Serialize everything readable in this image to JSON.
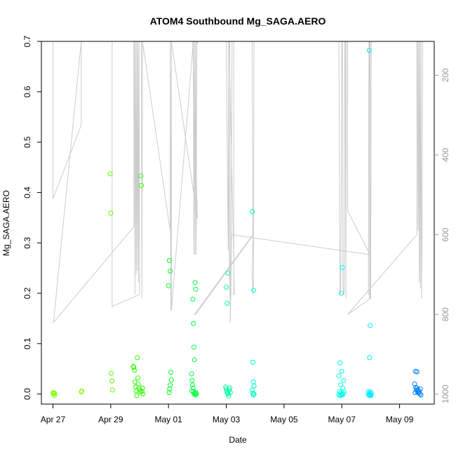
{
  "chart_data": {
    "type": "scatter",
    "title": "ATOM4 Southbound Mg_SAGA.AERO",
    "xlabel": "Date",
    "ylabel": "Mg_SAGA.AERO",
    "x_tick_labels": [
      "Apr 27",
      "Apr 29",
      "May 01",
      "May 03",
      "May 05",
      "May 07",
      "May 09"
    ],
    "x_tick_days": [
      0,
      2,
      4,
      6,
      8,
      10,
      12
    ],
    "xlim_days": [
      -0.4,
      13.2
    ],
    "ylim": [
      -0.02,
      0.7
    ],
    "y_ticks": [
      0.0,
      0.1,
      0.2,
      0.3,
      0.4,
      0.5,
      0.6,
      0.7
    ],
    "y_tick_labels": [
      "0.0",
      "0.1",
      "0.2",
      "0.3",
      "0.4",
      "0.5",
      "0.6",
      "0.7"
    ],
    "right_axis": {
      "ticks": [
        200,
        400,
        600,
        800,
        1000
      ],
      "tick_labels": [
        "200",
        "400",
        "600",
        "800",
        "1000"
      ],
      "reversed": true,
      "ylim": [
        115,
        1025
      ],
      "color": "#999999"
    },
    "point_style": "open-circle",
    "series": [
      {
        "color": "#7fff00",
        "points": [
          [
            0.0,
            0.003
          ],
          [
            0.02,
            0.0
          ],
          [
            0.04,
            0.002
          ],
          [
            0.05,
            -0.003
          ],
          [
            0.06,
            0.001
          ],
          [
            0.98,
            0.004
          ],
          [
            1.0,
            0.006
          ]
        ]
      },
      {
        "color": "#5aff00",
        "points": [
          [
            1.98,
            0.437
          ],
          [
            2.0,
            0.359
          ],
          [
            2.02,
            0.041
          ],
          [
            2.04,
            0.026
          ],
          [
            2.06,
            0.008
          ]
        ]
      },
      {
        "color": "#2dff00",
        "points": [
          [
            2.78,
            0.055
          ],
          [
            2.8,
            0.053
          ],
          [
            2.82,
            0.047
          ],
          [
            2.84,
            0.024
          ],
          [
            2.86,
            0.014
          ],
          [
            2.88,
            0.006
          ],
          [
            2.9,
            -0.003
          ],
          [
            2.92,
            0.072
          ],
          [
            2.94,
            0.032
          ],
          [
            2.96,
            0.02
          ],
          [
            2.98,
            0.012
          ],
          [
            3.0,
            0.008
          ],
          [
            3.02,
            0.004
          ],
          [
            3.04,
            0.433
          ],
          [
            3.06,
            0.414
          ],
          [
            3.08,
            0.005
          ],
          [
            3.1,
            0.012
          ],
          [
            3.12,
            0.0
          ]
        ]
      },
      {
        "color": "#00ff20",
        "points": [
          [
            4.0,
            0.215
          ],
          [
            4.03,
            0.265
          ],
          [
            4.06,
            0.244
          ],
          [
            4.08,
            0.043
          ],
          [
            4.1,
            0.028
          ],
          [
            4.06,
            0.018
          ],
          [
            4.04,
            0.01
          ],
          [
            4.02,
            0.003
          ]
        ]
      },
      {
        "color": "#00ff40",
        "points": [
          [
            4.8,
            0.04
          ],
          [
            4.82,
            0.027
          ],
          [
            4.84,
            0.188
          ],
          [
            4.86,
            0.14
          ],
          [
            4.88,
            0.093
          ],
          [
            4.9,
            0.068
          ],
          [
            4.92,
            0.221
          ],
          [
            4.94,
            0.208
          ],
          [
            4.85,
            0.012
          ],
          [
            4.87,
            0.005
          ],
          [
            4.89,
            0.0
          ],
          [
            4.91,
            0.002
          ],
          [
            4.93,
            -0.002
          ],
          [
            4.95,
            0.003
          ],
          [
            4.97,
            0.0
          ],
          [
            4.83,
            0.018
          ],
          [
            4.81,
            0.006
          ]
        ]
      },
      {
        "color": "#00ff9f",
        "points": [
          [
            6.0,
            0.212
          ],
          [
            6.03,
            0.18
          ],
          [
            6.06,
            0.24
          ],
          [
            5.98,
            0.014
          ],
          [
            6.0,
            0.01
          ],
          [
            6.02,
            0.005
          ],
          [
            6.04,
            0.002
          ],
          [
            6.06,
            0.0
          ],
          [
            6.08,
            -0.004
          ],
          [
            6.1,
            0.008
          ],
          [
            6.12,
            0.012
          ],
          [
            6.14,
            0.003
          ]
        ]
      },
      {
        "color": "#00ffbf",
        "points": [
          [
            6.9,
            0.362
          ],
          [
            6.95,
            0.206
          ],
          [
            6.92,
            0.063
          ],
          [
            6.94,
            0.024
          ],
          [
            6.96,
            0.016
          ],
          [
            6.9,
            0.008
          ],
          [
            6.92,
            0.002
          ],
          [
            6.96,
            0.0
          ],
          [
            6.94,
            -0.002
          ]
        ]
      },
      {
        "color": "#00ffef",
        "points": [
          [
            9.9,
            0.036
          ],
          [
            9.94,
            0.062
          ],
          [
            9.98,
            0.2
          ],
          [
            10.0,
            0.045
          ],
          [
            10.02,
            0.251
          ],
          [
            10.06,
            0.027
          ],
          [
            9.96,
            0.018
          ],
          [
            10.04,
            0.012
          ],
          [
            9.92,
            0.005
          ],
          [
            9.96,
            0.002
          ],
          [
            10.0,
            0.0
          ],
          [
            10.04,
            0.001
          ],
          [
            10.08,
            0.004
          ],
          [
            9.94,
            -0.003
          ],
          [
            9.98,
            -0.002
          ],
          [
            10.02,
            -0.002
          ],
          [
            9.9,
            -0.002
          ]
        ]
      },
      {
        "color": "#00efff",
        "points": [
          [
            10.95,
            0.682
          ],
          [
            10.98,
            0.136
          ],
          [
            10.96,
            0.072
          ],
          [
            10.92,
            0.005
          ],
          [
            10.94,
            0.002
          ],
          [
            10.97,
            0.0
          ],
          [
            11.0,
            0.004
          ],
          [
            11.02,
            0.001
          ],
          [
            10.95,
            -0.003
          ],
          [
            10.99,
            -0.002
          ],
          [
            11.01,
            -0.003
          ],
          [
            10.93,
            -0.002
          ]
        ]
      },
      {
        "color": "#0080ff",
        "points": [
          [
            12.55,
            0.045
          ],
          [
            12.6,
            0.044
          ],
          [
            12.52,
            0.02
          ],
          [
            12.56,
            0.013
          ],
          [
            12.6,
            0.012
          ],
          [
            12.64,
            0.008
          ],
          [
            12.58,
            0.008
          ],
          [
            12.62,
            0.004
          ],
          [
            12.66,
            0.002
          ],
          [
            12.7,
            0.0
          ],
          [
            12.74,
            -0.002
          ],
          [
            12.54,
            0.003
          ],
          [
            12.68,
            0.005
          ],
          [
            12.72,
            0.01
          ]
        ]
      }
    ],
    "track": {
      "color": "#cccccc",
      "points": [
        [
          0.0,
          115
        ],
        [
          0.0,
          510
        ],
        [
          0.98,
          325
        ],
        [
          0.98,
          115
        ],
        [
          0.98,
          115
        ],
        [
          0.02,
          820
        ],
        [
          2.8,
          580
        ],
        [
          2.8,
          115
        ],
        [
          2.82,
          115
        ],
        [
          2.84,
          750
        ],
        [
          2.86,
          115
        ],
        [
          2.88,
          700
        ],
        [
          2.9,
          115
        ],
        [
          2.92,
          690
        ],
        [
          2.94,
          115
        ],
        [
          2.96,
          720
        ],
        [
          2.98,
          115
        ],
        [
          3.0,
          750
        ],
        [
          3.0,
          750
        ],
        [
          2.05,
          780
        ],
        [
          2.05,
          115
        ],
        [
          2.03,
          115
        ],
        [
          3.06,
          115
        ],
        [
          3.08,
          760
        ],
        [
          3.1,
          115
        ],
        [
          3.1,
          115
        ],
        [
          4.06,
          590
        ],
        [
          4.06,
          115
        ],
        [
          4.06,
          115
        ],
        [
          4.08,
          790
        ],
        [
          4.1,
          115
        ],
        [
          4.1,
          115
        ],
        [
          5.0,
          560
        ],
        [
          4.84,
          115
        ],
        [
          4.86,
          115
        ],
        [
          4.88,
          650
        ],
        [
          4.9,
          115
        ],
        [
          4.92,
          650
        ],
        [
          4.94,
          115
        ],
        [
          4.96,
          650
        ],
        [
          4.98,
          115
        ],
        [
          5.0,
          120
        ],
        [
          5.02,
          115
        ],
        [
          5.02,
          115
        ],
        [
          4.86,
          115
        ],
        [
          4.1,
          790
        ],
        [
          4.1,
          115
        ],
        [
          6.0,
          115
        ],
        [
          6.0,
          110
        ],
        [
          6.05,
          520
        ],
        [
          6.05,
          520
        ],
        [
          6.07,
          640
        ],
        [
          6.08,
          115
        ],
        [
          6.1,
          600
        ],
        [
          6.12,
          740
        ],
        [
          6.14,
          770
        ],
        [
          6.16,
          760
        ],
        [
          6.18,
          430
        ],
        [
          6.2,
          115
        ],
        [
          6.22,
          115
        ],
        [
          6.26,
          115
        ],
        [
          6.26,
          115
        ],
        [
          6.26,
          750
        ],
        [
          6.28,
          750
        ],
        [
          6.28,
          750
        ],
        [
          6.1,
          115
        ],
        [
          6.12,
          115
        ],
        [
          6.14,
          820
        ],
        [
          6.16,
          730
        ],
        [
          6.18,
          600
        ],
        [
          6.18,
          600
        ],
        [
          10.98,
          650
        ],
        [
          10.98,
          115
        ],
        [
          6.9,
          115
        ],
        [
          6.92,
          600
        ],
        [
          6.92,
          600
        ],
        [
          4.9,
          800
        ],
        [
          4.94,
          800
        ],
        [
          6.94,
          600
        ],
        [
          6.92,
          620
        ],
        [
          6.9,
          700
        ],
        [
          6.92,
          750
        ],
        [
          6.94,
          720
        ],
        [
          6.96,
          115
        ],
        [
          6.96,
          115
        ],
        [
          9.9,
          115
        ],
        [
          9.9,
          110
        ],
        [
          9.92,
          470
        ],
        [
          9.94,
          750
        ],
        [
          9.96,
          740
        ],
        [
          9.98,
          520
        ],
        [
          10.0,
          115
        ],
        [
          10.02,
          115
        ],
        [
          10.04,
          730
        ],
        [
          10.06,
          740
        ],
        [
          10.08,
          750
        ],
        [
          10.1,
          115
        ],
        [
          10.12,
          115
        ],
        [
          10.14,
          760
        ],
        [
          10.16,
          115
        ],
        [
          10.18,
          115
        ],
        [
          10.2,
          115
        ],
        [
          10.2,
          540
        ],
        [
          10.98,
          650
        ],
        [
          10.98,
          750
        ],
        [
          10.92,
          750
        ],
        [
          10.94,
          115
        ],
        [
          10.96,
          115
        ],
        [
          10.96,
          760
        ],
        [
          10.98,
          760
        ],
        [
          11.0,
          740
        ],
        [
          11.02,
          115
        ],
        [
          11.02,
          115
        ],
        [
          11.0,
          760
        ],
        [
          11.0,
          760
        ],
        [
          10.2,
          800
        ],
        [
          10.2,
          800
        ],
        [
          12.6,
          600
        ],
        [
          12.6,
          115
        ],
        [
          12.62,
          115
        ],
        [
          12.64,
          590
        ],
        [
          12.66,
          115
        ],
        [
          12.68,
          720
        ],
        [
          12.7,
          115
        ],
        [
          12.72,
          735
        ],
        [
          12.74,
          115
        ],
        [
          12.76,
          760
        ],
        [
          12.78,
          600
        ],
        [
          12.8,
          115
        ]
      ]
    }
  }
}
